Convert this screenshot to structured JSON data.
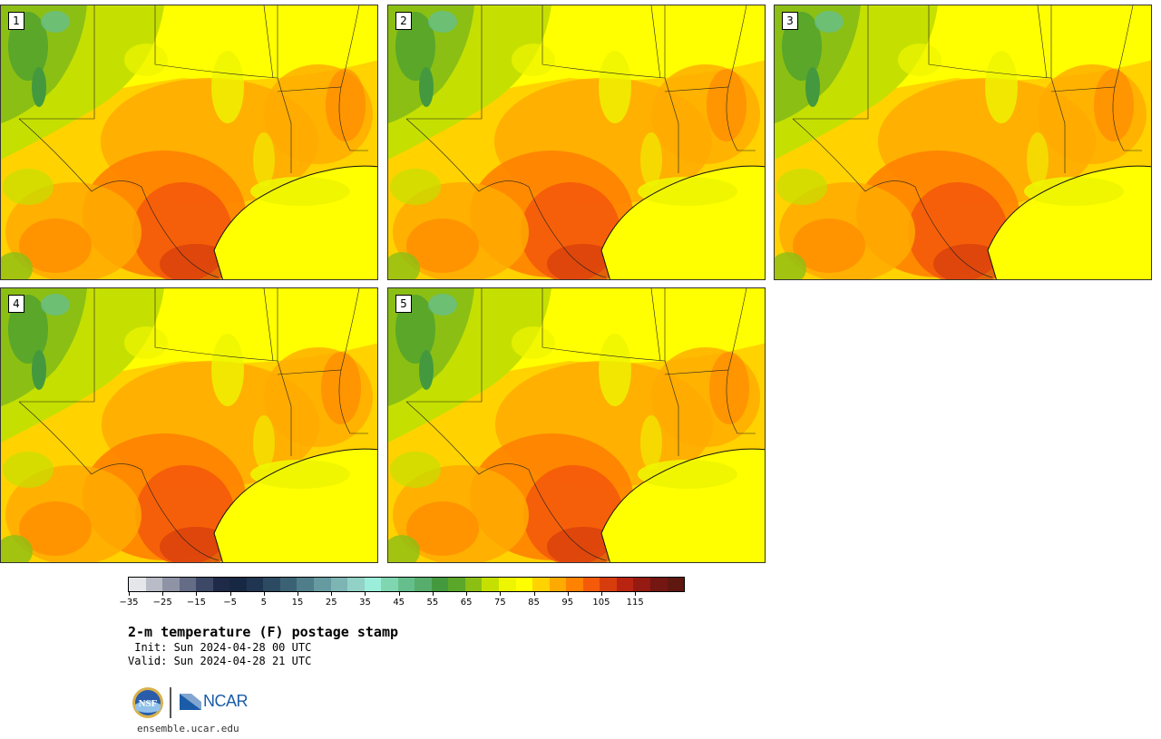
{
  "panels": [
    {
      "label": "1"
    },
    {
      "label": "2"
    },
    {
      "label": "3"
    },
    {
      "label": "4"
    },
    {
      "label": "5"
    }
  ],
  "colorbar": {
    "colors": [
      "#e4e6ea",
      "#b9bcc6",
      "#8e94a5",
      "#646d85",
      "#3d4766",
      "#1e2a47",
      "#172844",
      "#1f3552",
      "#2c4a62",
      "#3b6274",
      "#4f7d89",
      "#659aa0",
      "#7db5b4",
      "#92d1c6",
      "#9beed9",
      "#7fd6b0",
      "#65bf8c",
      "#56ad6c",
      "#44993e",
      "#5aa72a",
      "#8bbf14",
      "#c5e000",
      "#eef500",
      "#ffff00",
      "#ffd200",
      "#ffaa00",
      "#ff8200",
      "#f55a0a",
      "#d73d0c",
      "#b92410",
      "#951a12",
      "#741612",
      "#5e1810"
    ],
    "ticks": [
      "−35",
      "−25",
      "−15",
      "−5",
      "5",
      "15",
      "25",
      "35",
      "45",
      "55",
      "65",
      "75",
      "85",
      "95",
      "105",
      "115"
    ]
  },
  "title": "2-m temperature (F) postage stamp",
  "init_line": " Init: Sun 2024-04-28 00 UTC",
  "valid_line": "Valid: Sun 2024-04-28 21 UTC",
  "logos": {
    "nsf_text": "NSF",
    "ncar_text": "NCAR"
  },
  "website": "ensemble.ucar.edu"
}
